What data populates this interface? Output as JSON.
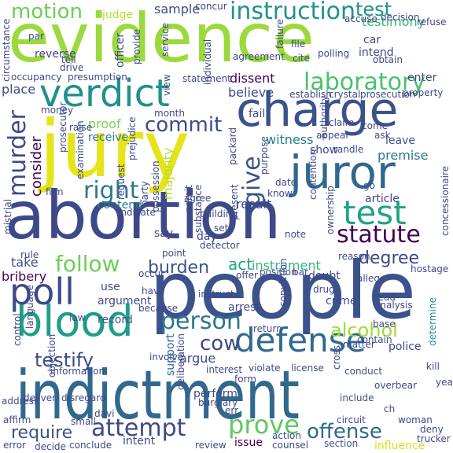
{
  "colors": {
    "background": "#ffffff",
    "palette": [
      "#440154",
      "#3b528b",
      "#21918c",
      "#5ec962",
      "#fde725"
    ]
  },
  "words": [
    {
      "text": "evidence",
      "color": "#9bd93c"
    },
    {
      "text": "people",
      "color": "#3b528b"
    },
    {
      "text": "abortion",
      "color": "#3e4989"
    },
    {
      "text": "indictment",
      "color": "#31688e"
    },
    {
      "text": "jury",
      "color": "#e5e419"
    },
    {
      "text": "charge",
      "color": "#3b528b"
    },
    {
      "text": "juror",
      "color": "#31688e"
    },
    {
      "text": "verdict",
      "color": "#21918c"
    },
    {
      "text": "blood",
      "color": "#1f9e89"
    },
    {
      "text": "poll",
      "color": "#3e4989"
    },
    {
      "text": "test",
      "color": "#20a386"
    },
    {
      "text": "defense",
      "color": "#31688e"
    },
    {
      "text": "laboratory",
      "color": "#4ac16d"
    },
    {
      "text": "instruction",
      "color": "#21918c"
    },
    {
      "text": "motion",
      "color": "#6ccd5a"
    },
    {
      "text": "murder",
      "color": "#3e4989"
    },
    {
      "text": "statute",
      "color": "#440154"
    },
    {
      "text": "commit",
      "color": "#3e4989"
    },
    {
      "text": "right",
      "color": "#2a788e"
    },
    {
      "text": "follow",
      "color": "#6ccd5a"
    },
    {
      "text": "burden",
      "color": "#3b528b"
    },
    {
      "text": "person",
      "color": "#2a788e"
    },
    {
      "text": "alcohol",
      "color": "#a0da39"
    },
    {
      "text": "cow",
      "color": "#3e4989"
    },
    {
      "text": "prove",
      "color": "#5ec962"
    },
    {
      "text": "attempt",
      "color": "#3e4989"
    },
    {
      "text": "offense",
      "color": "#31688e"
    },
    {
      "text": "require",
      "color": "#3b528b"
    },
    {
      "text": "testify",
      "color": "#3e4989"
    },
    {
      "text": "degree",
      "color": "#3e4989"
    },
    {
      "text": "give",
      "color": "#3b528b"
    },
    {
      "text": "consider",
      "color": "#440154"
    },
    {
      "text": "act",
      "color": "#20a386"
    },
    {
      "text": "instrument",
      "color": "#35b779"
    },
    {
      "text": "influence",
      "color": "#d2e21b"
    },
    {
      "text": "test",
      "color": "#21918c"
    },
    {
      "text": "judge",
      "color": "#b5de2b"
    },
    {
      "text": "sample",
      "color": "#3e4989"
    },
    {
      "text": "testimony",
      "color": "#35b779"
    },
    {
      "text": "dissent",
      "color": "#440154"
    },
    {
      "text": "believe",
      "color": "#3e4989"
    },
    {
      "text": "proof",
      "color": "#7ad151"
    },
    {
      "text": "receive",
      "color": "#2a788e"
    },
    {
      "text": "witness",
      "color": "#2a788e"
    },
    {
      "text": "show",
      "color": "#3e4989"
    },
    {
      "text": "leave",
      "color": "#3b528b"
    },
    {
      "text": "premise",
      "color": "#2a788e"
    },
    {
      "text": "fail",
      "color": "#3e4989"
    },
    {
      "text": "result",
      "color": "#3e4989"
    },
    {
      "text": "contend",
      "color": "#2a788e"
    },
    {
      "text": "majority",
      "color": "#b5de2b"
    },
    {
      "text": "say",
      "color": "#3e4989"
    },
    {
      "text": "day",
      "color": "#3e4989"
    },
    {
      "text": "take",
      "color": "#3e4989"
    },
    {
      "text": "bribery",
      "color": "#440154"
    },
    {
      "text": "use",
      "color": "#3e4989"
    },
    {
      "text": "argument",
      "color": "#3e4989"
    },
    {
      "text": "record",
      "color": "#3b528b"
    },
    {
      "text": "argue",
      "color": "#3e4989"
    },
    {
      "text": "support",
      "color": "#31688e"
    },
    {
      "text": "perform",
      "color": "#3e4989"
    },
    {
      "text": "intent",
      "color": "#3e4989"
    },
    {
      "text": "conclude",
      "color": "#3e4989"
    },
    {
      "text": "review",
      "color": "#3e4989"
    },
    {
      "text": "issue",
      "color": "#440154"
    },
    {
      "text": "counsel",
      "color": "#3e4989"
    },
    {
      "text": "section",
      "color": "#3b528b"
    },
    {
      "text": "crime",
      "color": "#3e4989"
    },
    {
      "text": "police",
      "color": "#3e4989"
    },
    {
      "text": "determine",
      "color": "#21918c"
    },
    {
      "text": "kill",
      "color": "#3e4989"
    },
    {
      "text": "doubt",
      "color": "#3e4989"
    },
    {
      "text": "allege",
      "color": "#3e4989"
    },
    {
      "text": "return",
      "color": "#3e4989"
    },
    {
      "text": "control",
      "color": "#3e4989"
    },
    {
      "text": "law",
      "color": "#3e4989"
    },
    {
      "text": "film",
      "color": "#3e4989"
    },
    {
      "text": "rule",
      "color": "#3e4989"
    },
    {
      "text": "mistrial",
      "color": "#3e4989"
    },
    {
      "text": "present",
      "color": "#3e4989"
    },
    {
      "text": "know",
      "color": "#3e4989"
    },
    {
      "text": "point",
      "color": "#3e4989"
    },
    {
      "text": "agree",
      "color": "#3e4989"
    },
    {
      "text": "ownership",
      "color": "#3e4989"
    },
    {
      "text": "article",
      "color": "#3e4989"
    },
    {
      "text": "go",
      "color": "#3e4989"
    },
    {
      "text": "request",
      "color": "#3e4989"
    },
    {
      "text": "party",
      "color": "#3e4989"
    },
    {
      "text": "officer",
      "color": "#3e4989"
    },
    {
      "text": "provide",
      "color": "#3e4989"
    },
    {
      "text": "individual",
      "color": "#3e4989"
    },
    {
      "text": "reverse",
      "color": "#3e4989"
    },
    {
      "text": "presumption",
      "color": "#3e4989"
    },
    {
      "text": "place",
      "color": "#3e4989"
    },
    {
      "text": "circumstance",
      "color": "#3e4989"
    },
    {
      "text": "car",
      "color": "#3e4989"
    },
    {
      "text": "intend",
      "color": "#3e4989"
    },
    {
      "text": "enter",
      "color": "#3e4989"
    },
    {
      "text": "accuse",
      "color": "#3e4989"
    },
    {
      "text": "file",
      "color": "#3e4989"
    },
    {
      "text": "cite",
      "color": "#3e4989"
    },
    {
      "text": "agreement",
      "color": "#3e4989"
    },
    {
      "text": "polling",
      "color": "#3e4989"
    },
    {
      "text": "obtain",
      "color": "#3e4989"
    },
    {
      "text": "refuse",
      "color": "#3e4989"
    },
    {
      "text": "property",
      "color": "#3e4989"
    },
    {
      "text": "decision",
      "color": "#3e4989"
    },
    {
      "text": "failure",
      "color": "#3e4989"
    },
    {
      "text": "establish",
      "color": "#3e4989"
    },
    {
      "text": "crystal",
      "color": "#3e4989"
    },
    {
      "text": "prosecution",
      "color": "#3e4989"
    },
    {
      "text": "statement",
      "color": "#3e4989"
    },
    {
      "text": "month",
      "color": "#3e4989"
    },
    {
      "text": "prejudice",
      "color": "#3e4989"
    },
    {
      "text": "raise",
      "color": "#3e4989"
    },
    {
      "text": "money",
      "color": "#3e4989"
    },
    {
      "text": "claim",
      "color": "#3e4989"
    },
    {
      "text": "come",
      "color": "#3e4989"
    },
    {
      "text": "appear",
      "color": "#3e4989"
    },
    {
      "text": "ask",
      "color": "#3e4989"
    },
    {
      "text": "randle",
      "color": "#3e4989"
    },
    {
      "text": "authority",
      "color": "#3e4989"
    },
    {
      "text": "date",
      "color": "#3e4989"
    },
    {
      "text": "purpose",
      "color": "#3e4989"
    },
    {
      "text": "contention",
      "color": "#3e4989"
    },
    {
      "text": "packard",
      "color": "#3e4989"
    },
    {
      "text": "possession",
      "color": "#3e4989"
    },
    {
      "text": "examination",
      "color": "#3e4989"
    },
    {
      "text": "prosecutor",
      "color": "#3e4989"
    },
    {
      "text": "indicate",
      "color": "#3e4989"
    },
    {
      "text": "building",
      "color": "#3e4989"
    },
    {
      "text": "concessionaire",
      "color": "#3e4989"
    },
    {
      "text": "set",
      "color": "#3e4989"
    },
    {
      "text": "note",
      "color": "#3e4989"
    },
    {
      "text": "detector",
      "color": "#3e4989"
    },
    {
      "text": "substance",
      "color": "#3e4989"
    },
    {
      "text": "reason",
      "color": "#3e4989"
    },
    {
      "text": "hostage",
      "color": "#3e4989"
    },
    {
      "text": "offer",
      "color": "#3e4989"
    },
    {
      "text": "position",
      "color": "#3e4989"
    },
    {
      "text": "bar",
      "color": "#3e4989"
    },
    {
      "text": "drug",
      "color": "#3e4989"
    },
    {
      "text": "occur",
      "color": "#3e4989"
    },
    {
      "text": "have",
      "color": "#3e4989"
    },
    {
      "text": "because",
      "color": "#3e4989"
    },
    {
      "text": "instruct",
      "color": "#3e4989"
    },
    {
      "text": "conviction",
      "color": "#3e4989"
    },
    {
      "text": "arrest",
      "color": "#3e4989"
    },
    {
      "text": "read",
      "color": "#3e4989"
    },
    {
      "text": "analysis",
      "color": "#3e4989"
    },
    {
      "text": "base",
      "color": "#3e4989"
    },
    {
      "text": "contain",
      "color": "#3e4989"
    },
    {
      "text": "matter",
      "color": "#3e4989"
    },
    {
      "text": "language",
      "color": "#3e4989"
    },
    {
      "text": "involve",
      "color": "#3e4989"
    },
    {
      "text": "interest",
      "color": "#3e4989"
    },
    {
      "text": "violate",
      "color": "#3e4989"
    },
    {
      "text": "license",
      "color": "#3e4989"
    },
    {
      "text": "conduct",
      "color": "#3e4989"
    },
    {
      "text": "form",
      "color": "#3e4989"
    },
    {
      "text": "cross",
      "color": "#3e4989"
    },
    {
      "text": "overbear",
      "color": "#3e4989"
    },
    {
      "text": "year",
      "color": "#3e4989"
    },
    {
      "text": "information",
      "color": "#3e4989"
    },
    {
      "text": "objection",
      "color": "#3e4989"
    },
    {
      "text": "address",
      "color": "#3e4989"
    },
    {
      "text": "deliver",
      "color": "#3e4989"
    },
    {
      "text": "disregard",
      "color": "#3e4989"
    },
    {
      "text": "deliberation",
      "color": "#3e4989"
    },
    {
      "text": "burglary",
      "color": "#3e4989"
    },
    {
      "text": "err",
      "color": "#3e4989"
    },
    {
      "text": "include",
      "color": "#3e4989"
    },
    {
      "text": "ch",
      "color": "#3e4989"
    },
    {
      "text": "woman",
      "color": "#3e4989"
    },
    {
      "text": "deny",
      "color": "#3e4989"
    },
    {
      "text": "trucker",
      "color": "#3e4989"
    },
    {
      "text": "affirm",
      "color": "#3e4989"
    },
    {
      "text": "davi",
      "color": "#3e4989"
    },
    {
      "text": "small",
      "color": "#3e4989"
    },
    {
      "text": "error",
      "color": "#3e4989"
    },
    {
      "text": "decide",
      "color": "#3e4989"
    },
    {
      "text": "action",
      "color": "#3e4989"
    },
    {
      "text": "circuit",
      "color": "#3e4989"
    },
    {
      "text": "drive",
      "color": "#3e4989"
    },
    {
      "text": "occupancy",
      "color": "#3e4989"
    },
    {
      "text": "tell",
      "color": "#3e4989"
    },
    {
      "text": "par",
      "color": "#3e4989"
    },
    {
      "text": "service",
      "color": "#3e4989"
    },
    {
      "text": "concur",
      "color": "#3e4989"
    },
    {
      "text": "view",
      "color": "#3e4989"
    },
    {
      "text": "admit",
      "color": "#3e4989"
    }
  ]
}
